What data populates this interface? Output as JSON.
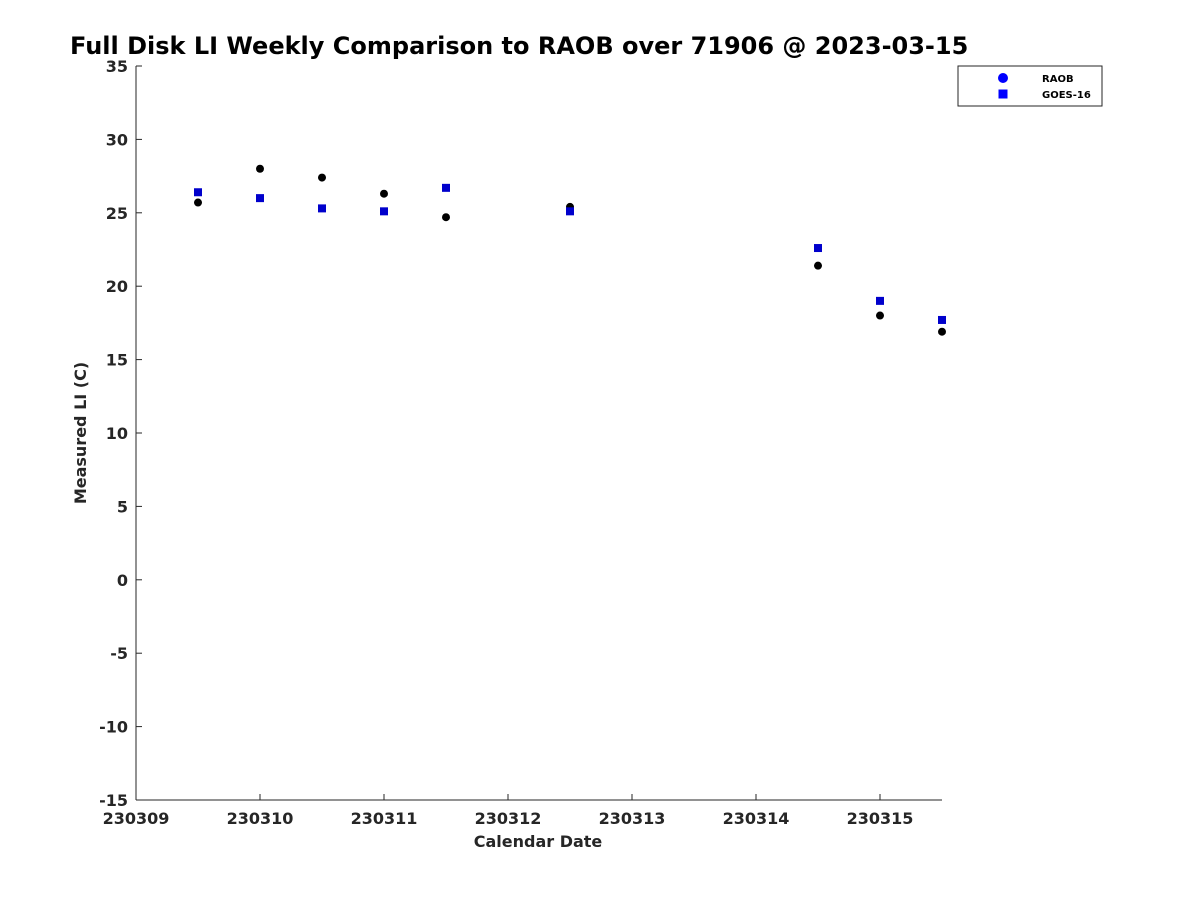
{
  "chart_data": {
    "type": "scatter",
    "title": "Full Disk LI Weekly Comparison to RAOB over 71906 @ 2023-03-15",
    "xlabel": "Calendar Date",
    "ylabel": "Measured LI (C)",
    "xlim": [
      230309,
      230315.5
    ],
    "ylim": [
      -15,
      35
    ],
    "x_ticks": [
      230309,
      230310,
      230311,
      230312,
      230313,
      230314,
      230315
    ],
    "y_ticks": [
      35,
      30,
      25,
      20,
      15,
      10,
      5,
      0,
      -5,
      -10,
      -15
    ],
    "grid": false,
    "legend_position": "top-right",
    "series": [
      {
        "name": "RAOB",
        "marker": "circle",
        "color": "#000000",
        "legend_color": "#0000ff",
        "x": [
          230309.5,
          230310,
          230310.5,
          230311,
          230311.5,
          230312.5,
          230314.5,
          230315,
          230315.5
        ],
        "y": [
          25.7,
          28.0,
          27.4,
          26.3,
          24.7,
          25.4,
          21.4,
          18.0,
          16.9
        ]
      },
      {
        "name": "GOES-16",
        "marker": "square",
        "color": "#0000cc",
        "legend_color": "#0000ff",
        "x": [
          230309.5,
          230310,
          230310.5,
          230311,
          230311.5,
          230312.5,
          230314.5,
          230315,
          230315.5
        ],
        "y": [
          26.4,
          26.0,
          25.3,
          25.1,
          26.7,
          25.1,
          22.6,
          19.0,
          17.7
        ]
      }
    ]
  }
}
